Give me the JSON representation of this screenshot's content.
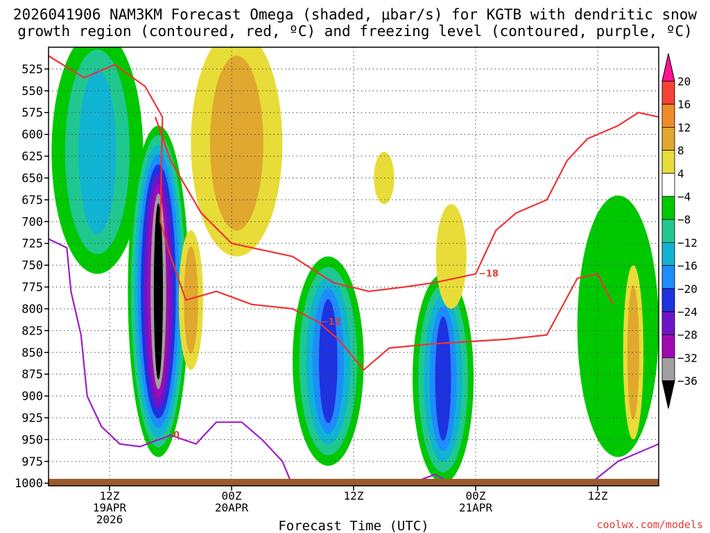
{
  "chart_data": {
    "type": "heatmap",
    "title_line1": "2026041906 NAM3KM Forecast Omega (shaded, μbar/s) for KGTB with dendritic snow",
    "title_line2": "growth region (contoured, red, ºC) and freezing level (contoured, purple, ºC)",
    "xlabel": "Forecast Time (UTC)",
    "credit": "coolwx.com/models",
    "y_ticks": [
      525,
      550,
      575,
      600,
      625,
      650,
      675,
      700,
      725,
      750,
      775,
      800,
      825,
      850,
      875,
      900,
      925,
      950,
      975,
      1000
    ],
    "ylim_hpa": [
      500,
      1003
    ],
    "xlim_hours": [
      0,
      60
    ],
    "x_ticks": [
      {
        "hour": 6,
        "label": "12Z",
        "sub1": "19APR",
        "sub2": "2026"
      },
      {
        "hour": 18,
        "label": "00Z",
        "sub1": "20APR",
        "sub2": ""
      },
      {
        "hour": 30,
        "label": "12Z",
        "sub1": "",
        "sub2": ""
      },
      {
        "hour": 42,
        "label": "00Z",
        "sub1": "21APR",
        "sub2": ""
      },
      {
        "hour": 54,
        "label": "12Z",
        "sub1": "",
        "sub2": ""
      }
    ],
    "colorbar": {
      "labels": [
        "20",
        "16",
        "12",
        "8",
        "4",
        "−4",
        "−8",
        "−12",
        "−16",
        "−20",
        "−24",
        "−28",
        "−32",
        "−36"
      ],
      "bins": [
        {
          "range": ">20",
          "color": "#ff1493"
        },
        {
          "range": "16 to 20",
          "color": "#f44336"
        },
        {
          "range": "12 to 16",
          "color": "#f08c28"
        },
        {
          "range": "8 to 12",
          "color": "#e0a82e"
        },
        {
          "range": "4 to 8",
          "color": "#e8dc38"
        },
        {
          "range": "-4 to 4",
          "color": "#ffffff"
        },
        {
          "range": "-8 to -4",
          "color": "#00c800"
        },
        {
          "range": "-12 to -8",
          "color": "#20c890"
        },
        {
          "range": "-16 to -12",
          "color": "#10b4d2"
        },
        {
          "range": "-20 to -16",
          "color": "#1e8cff"
        },
        {
          "range": "-24 to -20",
          "color": "#1e32e0"
        },
        {
          "range": "-28 to -24",
          "color": "#6e14c8"
        },
        {
          "range": "-32 to -28",
          "color": "#a00ab4"
        },
        {
          "range": "-36 to -32",
          "color": "#a0a0a0"
        },
        {
          "range": "<-36",
          "color": "#000000"
        }
      ]
    },
    "omega_regions": [
      {
        "name": "col-1",
        "level_colors": [
          "#00c800",
          "#20c890",
          "#10b4d2"
        ],
        "center_h": 4.8,
        "center_p": 620,
        "half_w_h": 4.5,
        "half_h_p": 140
      },
      {
        "name": "col-2-strong",
        "level_colors": [
          "#00c800",
          "#20c890",
          "#10b4d2",
          "#1e8cff",
          "#1e32e0",
          "#6e14c8",
          "#a00ab4",
          "#a0a0a0",
          "#000000"
        ],
        "center_h": 10.8,
        "center_p": 780,
        "half_w_h": 3.0,
        "half_h_p": 190
      },
      {
        "name": "col-3",
        "level_colors": [
          "#00c800",
          "#20c890",
          "#10b4d2",
          "#1e8cff",
          "#1e32e0"
        ],
        "center_h": 27.5,
        "center_p": 860,
        "half_w_h": 3.5,
        "half_h_p": 120
      },
      {
        "name": "col-4",
        "level_colors": [
          "#00c800",
          "#20c890",
          "#10b4d2",
          "#1e8cff",
          "#1e32e0"
        ],
        "center_h": 38.8,
        "center_p": 880,
        "half_w_h": 3.0,
        "half_h_p": 120
      },
      {
        "name": "col-5",
        "level_colors": [
          "#00c800"
        ],
        "center_h": 56.0,
        "center_p": 820,
        "half_w_h": 4.0,
        "half_h_p": 150
      },
      {
        "name": "rise-1",
        "level_colors": [
          "#e8dc38",
          "#e0a82e"
        ],
        "center_h": 18.5,
        "center_p": 610,
        "half_w_h": 4.5,
        "half_h_p": 130
      },
      {
        "name": "rise-2",
        "level_colors": [
          "#e8dc38"
        ],
        "center_h": 39.6,
        "center_p": 740,
        "half_w_h": 1.5,
        "half_h_p": 60
      },
      {
        "name": "rise-3",
        "level_colors": [
          "#e8dc38"
        ],
        "center_h": 33.0,
        "center_p": 650,
        "half_w_h": 1.0,
        "half_h_p": 30
      },
      {
        "name": "rise-4",
        "level_colors": [
          "#e8dc38",
          "#e0a82e"
        ],
        "center_h": 14.0,
        "center_p": 790,
        "half_w_h": 1.2,
        "half_h_p": 80
      },
      {
        "name": "rise-5",
        "level_colors": [
          "#e8dc38",
          "#e0a82e"
        ],
        "center_h": 57.5,
        "center_p": 850,
        "half_w_h": 1.0,
        "half_h_p": 100
      }
    ],
    "contours": [
      {
        "name": "minus-12-contour",
        "label": "−12",
        "color": "#ee3333",
        "points": [
          [
            0,
            510
          ],
          [
            3.5,
            535
          ],
          [
            6.5,
            520
          ],
          [
            9.5,
            545
          ],
          [
            11.2,
            580
          ],
          [
            11.0,
            700
          ],
          [
            12.0,
            740
          ],
          [
            13.5,
            790
          ],
          [
            16.5,
            780
          ],
          [
            20.0,
            795
          ],
          [
            24.0,
            800
          ],
          [
            26.5,
            815
          ],
          [
            28.5,
            835
          ],
          [
            31.0,
            870
          ],
          [
            33.5,
            845
          ],
          [
            38.0,
            840
          ],
          [
            45.0,
            835
          ],
          [
            49.0,
            830
          ],
          [
            52.0,
            765
          ],
          [
            54.0,
            760
          ],
          [
            55.5,
            795
          ]
        ]
      },
      {
        "name": "minus-18-contour",
        "label": "−18",
        "color": "#ee3333",
        "points": [
          [
            10.5,
            580
          ],
          [
            12.0,
            630
          ],
          [
            15.0,
            690
          ],
          [
            18.0,
            725
          ],
          [
            24.0,
            740
          ],
          [
            28.0,
            770
          ],
          [
            31.5,
            780
          ],
          [
            35.0,
            775
          ],
          [
            38.0,
            770
          ],
          [
            42.0,
            760
          ],
          [
            44.0,
            710
          ],
          [
            46.0,
            690
          ],
          [
            49.0,
            675
          ],
          [
            51.0,
            630
          ],
          [
            53.0,
            605
          ],
          [
            56.0,
            590
          ],
          [
            58.0,
            575
          ],
          [
            60.0,
            580
          ]
        ]
      },
      {
        "name": "zero-freezing-contour",
        "label": "0",
        "color": "#9b1ec8",
        "points": [
          [
            0,
            720
          ],
          [
            1.8,
            730
          ],
          [
            2.2,
            780
          ],
          [
            3.2,
            830
          ],
          [
            3.8,
            900
          ],
          [
            5.2,
            935
          ],
          [
            7.0,
            955
          ],
          [
            9.0,
            958
          ],
          [
            12.0,
            945
          ],
          [
            14.5,
            955
          ],
          [
            16.5,
            930
          ],
          [
            19.0,
            930
          ],
          [
            21.0,
            950
          ],
          [
            23.0,
            975
          ],
          [
            24.0,
            1003
          ]
        ]
      },
      {
        "name": "zero-freezing-contour-2",
        "label": "",
        "color": "#9b1ec8",
        "points": [
          [
            35.0,
            1003
          ],
          [
            38.0,
            990
          ],
          [
            40.0,
            1003
          ]
        ]
      },
      {
        "name": "zero-freezing-contour-3",
        "label": "",
        "color": "#9b1ec8",
        "points": [
          [
            53.0,
            1003
          ],
          [
            56.0,
            975
          ],
          [
            60.0,
            955
          ]
        ]
      }
    ],
    "terrain": {
      "surface_hpa": 995,
      "color": "#9b5a2d"
    }
  }
}
